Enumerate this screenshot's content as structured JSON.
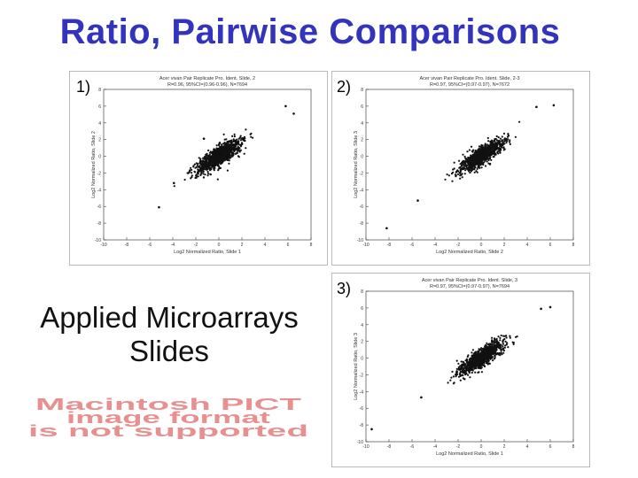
{
  "slide": {
    "title": "Ratio, Pairwise Comparisons",
    "side_text_line1": "Applied Microarrays",
    "side_text_line2": "Slides",
    "pict_line1": "Macintosh PICT",
    "pict_line2": "image format",
    "pict_line3": "is not supported"
  },
  "colors": {
    "title": "#3333bb",
    "pict_text": "#e89090",
    "points": "#111111"
  },
  "chart_data": [
    {
      "type": "scatter",
      "label": "1)",
      "title": "Acer vivan Pair Replicate Pro. Ident. Slide, 2",
      "subtitle": "R=0.96, 95%CI=(0.96-0.96), N=7694",
      "xlabel": "Log2 Normalized Ratio, Slide 1",
      "ylabel": "Log2 Normalized Ratio, Slide 2",
      "xlim": [
        -10,
        8
      ],
      "ylim": [
        -10,
        8
      ],
      "xticks": [
        -10,
        -8,
        -6,
        -4,
        -2,
        0,
        2,
        4,
        6,
        8
      ],
      "yticks": [
        -10,
        -8,
        -6,
        -4,
        -2,
        0,
        2,
        4,
        6,
        8
      ],
      "cloud": {
        "center": [
          0,
          0
        ],
        "spread_along": 1.3,
        "spread_across": 0.45,
        "n": 1000
      },
      "outliers": [
        [
          -5.2,
          -6.1
        ],
        [
          5.8,
          6.0
        ],
        [
          -1.3,
          2.1
        ],
        [
          6.5,
          5.1
        ],
        [
          -3.9,
          -3.2
        ]
      ]
    },
    {
      "type": "scatter",
      "label": "2)",
      "title": "Acer vivan Pair Replicate Pro. Ident. Slide, 2-3",
      "subtitle": "R=0.97, 95%CI=(0.97-0.97), N=7672",
      "xlabel": "Log2 Normalized Ratio, Slide 2",
      "ylabel": "Log2 Normalized Ratio, Slide 3",
      "xlim": [
        -10,
        8
      ],
      "ylim": [
        -10,
        8
      ],
      "xticks": [
        -10,
        -8,
        -6,
        -4,
        -2,
        0,
        2,
        4,
        6,
        8
      ],
      "yticks": [
        -10,
        -8,
        -6,
        -4,
        -2,
        0,
        2,
        4,
        6,
        8
      ],
      "cloud": {
        "center": [
          0,
          0
        ],
        "spread_along": 1.3,
        "spread_across": 0.4,
        "n": 1000
      },
      "outliers": [
        [
          -5.5,
          -5.3
        ],
        [
          6.3,
          6.1
        ],
        [
          -8.2,
          -8.6
        ],
        [
          4.8,
          5.9
        ]
      ]
    },
    {
      "type": "scatter",
      "label": "3)",
      "title": "Acer vivan Pair Replicate Pro. Ident. Slide, 3",
      "subtitle": "R=0.97, 95%CI=(0.97-0.97), N=7694",
      "xlabel": "Log2 Normalized Ratio, Slide 1",
      "ylabel": "Log2 Normalized Ratio, Slide 3",
      "xlim": [
        -10,
        8
      ],
      "ylim": [
        -10,
        8
      ],
      "xticks": [
        -10,
        -8,
        -6,
        -4,
        -2,
        0,
        2,
        4,
        6,
        8
      ],
      "yticks": [
        -10,
        -8,
        -6,
        -4,
        -2,
        0,
        2,
        4,
        6,
        8
      ],
      "cloud": {
        "center": [
          0,
          0
        ],
        "spread_along": 1.3,
        "spread_across": 0.4,
        "n": 1000
      },
      "outliers": [
        [
          -9.5,
          -8.5
        ],
        [
          6.0,
          6.1
        ],
        [
          5.2,
          5.9
        ],
        [
          -5.2,
          -4.7
        ]
      ]
    }
  ]
}
